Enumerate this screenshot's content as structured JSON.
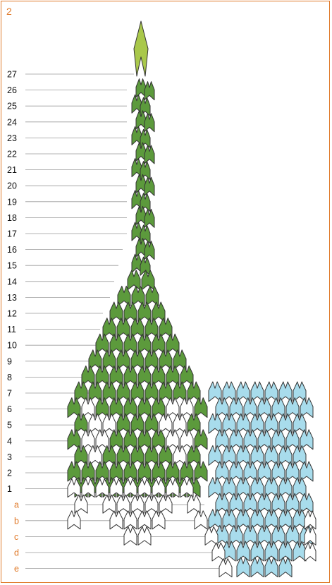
{
  "step_number": "2",
  "row_labels": [
    "27",
    "26",
    "25",
    "24",
    "23",
    "22",
    "21",
    "20",
    "19",
    "18",
    "17",
    "16",
    "15",
    "14",
    "13",
    "12",
    "11",
    "10",
    "9",
    "8",
    "7",
    "6",
    "5",
    "4",
    "3",
    "2",
    "1",
    "a",
    "b",
    "c",
    "d",
    "e"
  ],
  "colors": {
    "accent": "#e07a2a",
    "green": "#5c9a3c",
    "green_light": "#a9c84a",
    "white": "#ffffff",
    "blue": "#a8dcec",
    "stroke": "#333333",
    "guide": "#9a9a9a"
  }
}
